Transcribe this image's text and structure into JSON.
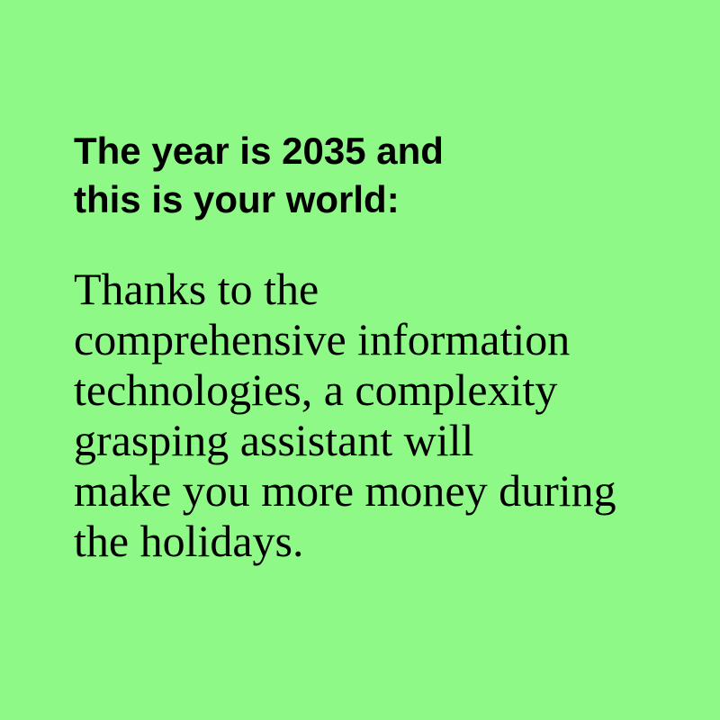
{
  "colors": {
    "background": "#8ef987",
    "text": "#000000"
  },
  "heading": {
    "lines": [
      "The year is 2035 and",
      "this is your world:"
    ]
  },
  "body": {
    "lines": [
      "Thanks to the",
      "comprehensive information",
      "technologies, a complexity",
      "grasping assistant will",
      "make you more money during",
      "the holidays."
    ]
  }
}
